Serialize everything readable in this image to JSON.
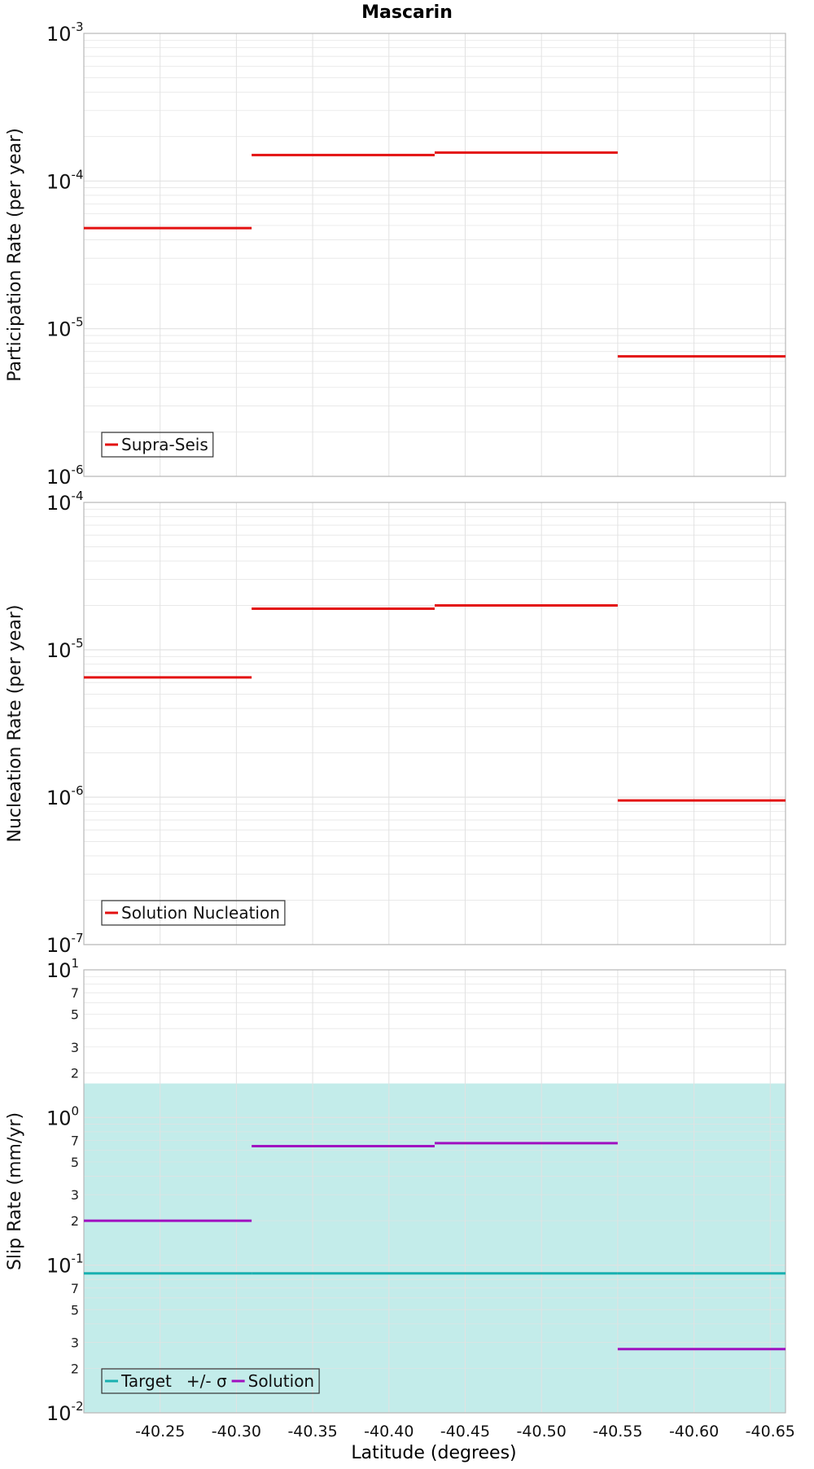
{
  "title": "Mascarin",
  "xlabel": "Latitude (degrees)",
  "colors": {
    "red": "#e31010",
    "magenta": "#a010c0",
    "target": "#18b0b0",
    "sigma_fill": "#c3ecea",
    "grid": "#e2e2e2",
    "frame": "#b8b8b8"
  },
  "chart_data": [
    {
      "type": "line",
      "style": "step-segments",
      "ylabel": "Participation Rate (per year)",
      "yscale": "log",
      "ylim": [
        1e-06,
        0.001
      ],
      "xlim": [
        -40.2,
        -40.66
      ],
      "x_ticks": [
        -40.25,
        -40.3,
        -40.35,
        -40.4,
        -40.45,
        -40.5,
        -40.55,
        -40.6,
        -40.65
      ],
      "y_tick_labels": [
        {
          "base": "10",
          "exp": "-3"
        },
        {
          "base": "10",
          "exp": "-4"
        },
        {
          "base": "10",
          "exp": "-5"
        },
        {
          "base": "10",
          "exp": "-6"
        }
      ],
      "grid": true,
      "legend_position": "bottom-left",
      "series": [
        {
          "name": "Supra-Seis",
          "color": "#e31010",
          "segments": [
            {
              "x": [
                -40.2,
                -40.31
              ],
              "y": 4.8e-05
            },
            {
              "x": [
                -40.31,
                -40.43
              ],
              "y": 0.00015
            },
            {
              "x": [
                -40.43,
                -40.55
              ],
              "y": 0.000156
            },
            {
              "x": [
                -40.55,
                -40.66
              ],
              "y": 6.5e-06
            }
          ]
        }
      ]
    },
    {
      "type": "line",
      "style": "step-segments",
      "ylabel": "Nucleation Rate (per year)",
      "yscale": "log",
      "ylim": [
        1e-07,
        0.0001
      ],
      "xlim": [
        -40.2,
        -40.66
      ],
      "x_ticks": [
        -40.25,
        -40.3,
        -40.35,
        -40.4,
        -40.45,
        -40.5,
        -40.55,
        -40.6,
        -40.65
      ],
      "y_tick_labels": [
        {
          "base": "10",
          "exp": "-4"
        },
        {
          "base": "10",
          "exp": "-5"
        },
        {
          "base": "10",
          "exp": "-6"
        },
        {
          "base": "10",
          "exp": "-7"
        }
      ],
      "grid": true,
      "legend_position": "bottom-left",
      "series": [
        {
          "name": "Solution Nucleation",
          "color": "#e31010",
          "segments": [
            {
              "x": [
                -40.2,
                -40.31
              ],
              "y": 6.5e-06
            },
            {
              "x": [
                -40.31,
                -40.43
              ],
              "y": 1.9e-05
            },
            {
              "x": [
                -40.43,
                -40.55
              ],
              "y": 2e-05
            },
            {
              "x": [
                -40.55,
                -40.66
              ],
              "y": 9.5e-07
            }
          ]
        }
      ]
    },
    {
      "type": "line",
      "style": "step-segments",
      "ylabel": "Slip Rate (mm/yr)",
      "yscale": "log",
      "ylim": [
        0.01,
        10
      ],
      "xlim": [
        -40.2,
        -40.66
      ],
      "x_ticks": [
        -40.25,
        -40.3,
        -40.35,
        -40.4,
        -40.45,
        -40.5,
        -40.55,
        -40.6,
        -40.65
      ],
      "x_tick_labels": [
        "-40.25",
        "-40.30",
        "-40.35",
        "-40.40",
        "-40.45",
        "-40.50",
        "-40.55",
        "-40.60",
        "-40.65"
      ],
      "y_tick_labels": [
        {
          "base": "10",
          "exp": "1"
        },
        {
          "base": "10",
          "exp": "0"
        },
        {
          "base": "10",
          "exp": "-1"
        },
        {
          "base": "10",
          "exp": "-2"
        }
      ],
      "y_minor_labels": [
        "7",
        "5",
        "3",
        "2",
        "7",
        "5",
        "3",
        "2",
        "7",
        "5",
        "3",
        "2"
      ],
      "grid": true,
      "legend_position": "bottom-left",
      "band": {
        "name": "+/- σ",
        "color": "#c3ecea",
        "ymin": 0.01,
        "ymax": 1.7
      },
      "series": [
        {
          "name": "Target",
          "color": "#18b0b0",
          "segments": [
            {
              "x": [
                -40.2,
                -40.31
              ],
              "y": 0.088
            },
            {
              "x": [
                -40.31,
                -40.43
              ],
              "y": 0.088
            },
            {
              "x": [
                -40.43,
                -40.55
              ],
              "y": 0.088
            },
            {
              "x": [
                -40.55,
                -40.66
              ],
              "y": 0.088
            }
          ]
        },
        {
          "name": "Solution",
          "color": "#a010c0",
          "segments": [
            {
              "x": [
                -40.2,
                -40.31
              ],
              "y": 0.2
            },
            {
              "x": [
                -40.31,
                -40.43
              ],
              "y": 0.64
            },
            {
              "x": [
                -40.43,
                -40.55
              ],
              "y": 0.67
            },
            {
              "x": [
                -40.55,
                -40.66
              ],
              "y": 0.027
            }
          ]
        }
      ]
    }
  ]
}
